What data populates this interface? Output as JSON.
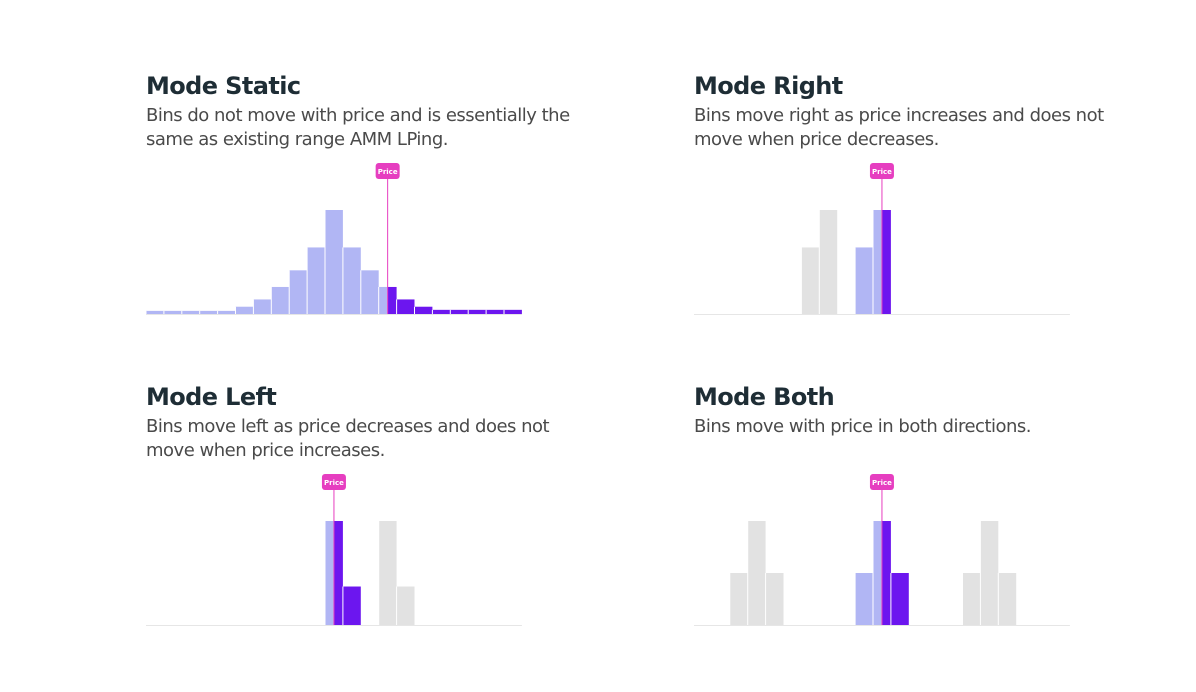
{
  "price_marker_label": "Price",
  "colors": {
    "active_light": "#b1b6f4",
    "active_dark": "#6c16ef",
    "inactive": "#e2e2e2",
    "price": "#e63ec0",
    "baseline": "#e6e6e6"
  },
  "panels": [
    {
      "id": "static",
      "title": "Mode Static",
      "description": "Bins do not move with price and is essentially the same as existing range AMM LPing."
    },
    {
      "id": "right",
      "title": "Mode Right",
      "description": "Bins move right as price increases and does not move when price decreases."
    },
    {
      "id": "left",
      "title": "Mode Left",
      "description": "Bins move left as price decreases and does not move when price increases."
    },
    {
      "id": "both",
      "title": "Mode Both",
      "description": "Bins move with price in both directions."
    }
  ],
  "chart_data": [
    {
      "type": "bar",
      "panel": "static",
      "unit_note": "relative bin liquidity, 0-10",
      "bins": [
        {
          "x": 0,
          "value": 0.3,
          "style": "light"
        },
        {
          "x": 1,
          "value": 0.3,
          "style": "light"
        },
        {
          "x": 2,
          "value": 0.3,
          "style": "light"
        },
        {
          "x": 3,
          "value": 0.3,
          "style": "light"
        },
        {
          "x": 4,
          "value": 0.3,
          "style": "light"
        },
        {
          "x": 5,
          "value": 0.7,
          "style": "light"
        },
        {
          "x": 6,
          "value": 1.4,
          "style": "light"
        },
        {
          "x": 7,
          "value": 2.6,
          "style": "light"
        },
        {
          "x": 8,
          "value": 4.2,
          "style": "light"
        },
        {
          "x": 9,
          "value": 6.4,
          "style": "light"
        },
        {
          "x": 10,
          "value": 10,
          "style": "light"
        },
        {
          "x": 11,
          "value": 6.4,
          "style": "light"
        },
        {
          "x": 12,
          "value": 4.2,
          "style": "light"
        },
        {
          "x": 13,
          "value": 2.6,
          "style": "split"
        },
        {
          "x": 14,
          "value": 1.4,
          "style": "dark"
        },
        {
          "x": 15,
          "value": 0.7,
          "style": "dark"
        },
        {
          "x": 16,
          "value": 0.4,
          "style": "dark"
        },
        {
          "x": 17,
          "value": 0.4,
          "style": "dark"
        },
        {
          "x": 18,
          "value": 0.4,
          "style": "dark"
        },
        {
          "x": 19,
          "value": 0.4,
          "style": "dark"
        },
        {
          "x": 20,
          "value": 0.4,
          "style": "dark"
        }
      ],
      "price_x": 13.5
    },
    {
      "type": "bar",
      "panel": "right",
      "bins": [
        {
          "x": 6,
          "value": 6.4,
          "style": "inactive"
        },
        {
          "x": 7,
          "value": 10,
          "style": "inactive"
        },
        {
          "x": 9,
          "value": 6.4,
          "style": "light"
        },
        {
          "x": 10,
          "value": 10,
          "style": "split"
        }
      ],
      "price_x": 10.5
    },
    {
      "type": "bar",
      "panel": "left",
      "bins": [
        {
          "x": 10,
          "value": 10,
          "style": "split"
        },
        {
          "x": 11,
          "value": 3.7,
          "style": "dark"
        },
        {
          "x": 13,
          "value": 10,
          "style": "inactive"
        },
        {
          "x": 14,
          "value": 3.7,
          "style": "inactive"
        }
      ],
      "price_x": 10.5
    },
    {
      "type": "bar",
      "panel": "both",
      "bins": [
        {
          "x": 2,
          "value": 5,
          "style": "inactive"
        },
        {
          "x": 3,
          "value": 10,
          "style": "inactive"
        },
        {
          "x": 4,
          "value": 5,
          "style": "inactive"
        },
        {
          "x": 9,
          "value": 5,
          "style": "light"
        },
        {
          "x": 10,
          "value": 10,
          "style": "split"
        },
        {
          "x": 11,
          "value": 5,
          "style": "dark"
        },
        {
          "x": 15,
          "value": 5,
          "style": "inactive"
        },
        {
          "x": 16,
          "value": 10,
          "style": "inactive"
        },
        {
          "x": 17,
          "value": 5,
          "style": "inactive"
        }
      ],
      "price_x": 10.5
    }
  ]
}
